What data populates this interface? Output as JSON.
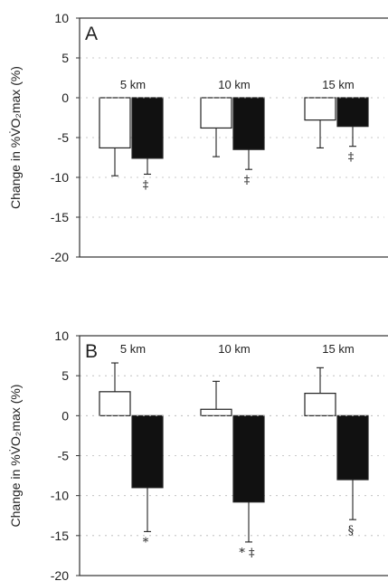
{
  "chart_data": [
    {
      "type": "bar",
      "panel_label": "A",
      "ylabel": "Change in %V̇O₂max (%)",
      "ylim": [
        -20,
        10
      ],
      "yticks": [
        10,
        5,
        0,
        -5,
        -10,
        -15,
        -20
      ],
      "categories": [
        "5 km",
        "10 km",
        "15 km"
      ],
      "grid": true,
      "series": [
        {
          "color": "#ffffff",
          "values": [
            -6.3,
            -3.8,
            -2.8
          ],
          "error": [
            3.5,
            3.6,
            3.5
          ]
        },
        {
          "color": "#111111",
          "values": [
            -7.6,
            -6.5,
            -3.6
          ],
          "error": [
            2.0,
            2.5,
            2.5
          ]
        }
      ],
      "annotations": [
        "‡",
        "‡",
        "‡"
      ]
    },
    {
      "type": "bar",
      "panel_label": "B",
      "ylabel": "Change in %V̇O₂max (%)",
      "ylim": [
        -20,
        10
      ],
      "yticks": [
        10,
        5,
        0,
        -5,
        -10,
        -15,
        -20
      ],
      "categories": [
        "5 km",
        "10 km",
        "15 km"
      ],
      "grid": true,
      "series": [
        {
          "color": "#ffffff",
          "values": [
            3.0,
            0.8,
            2.8
          ],
          "error": [
            3.6,
            3.5,
            3.2
          ]
        },
        {
          "color": "#111111",
          "values": [
            -9.0,
            -10.8,
            -8.0
          ],
          "error": [
            5.5,
            5.0,
            5.0
          ]
        }
      ],
      "annotations": [
        "*",
        "* ‡",
        "§"
      ]
    }
  ]
}
